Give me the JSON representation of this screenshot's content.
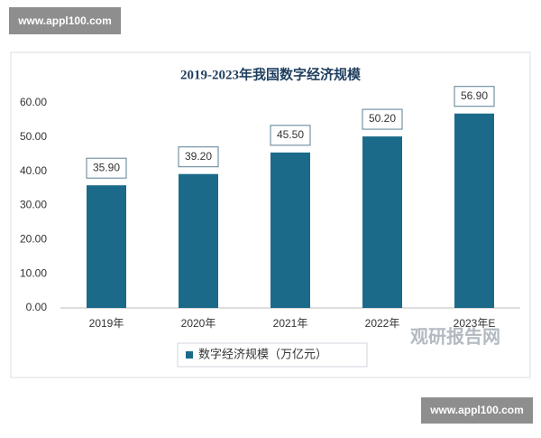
{
  "chart_data": {
    "type": "bar",
    "title": "2019-2023年我国数字经济规模",
    "categories": [
      "2019年",
      "2020年",
      "2021年",
      "2022年",
      "2023年E"
    ],
    "series": [
      {
        "name": "数字经济规模（万亿元）",
        "color": "#1b6a8a",
        "values": [
          35.9,
          39.2,
          45.5,
          50.2,
          56.9
        ],
        "value_labels": [
          "35.90",
          "39.20",
          "45.50",
          "50.20",
          "56.90"
        ]
      }
    ],
    "ylim": [
      0,
      60
    ],
    "yticks": [
      {
        "value": 0,
        "label": "0.00"
      },
      {
        "value": 10,
        "label": "10.00"
      },
      {
        "value": 20,
        "label": "20.00"
      },
      {
        "value": 30,
        "label": "30.00"
      },
      {
        "value": 40,
        "label": "40.00"
      },
      {
        "value": 50,
        "label": "50.00"
      },
      {
        "value": 60,
        "label": "60.00"
      }
    ],
    "grid": false,
    "legend": "bottom"
  },
  "watermarks": [
    "www.appl100.com",
    "www.appl100.com",
    "观研报告网"
  ]
}
